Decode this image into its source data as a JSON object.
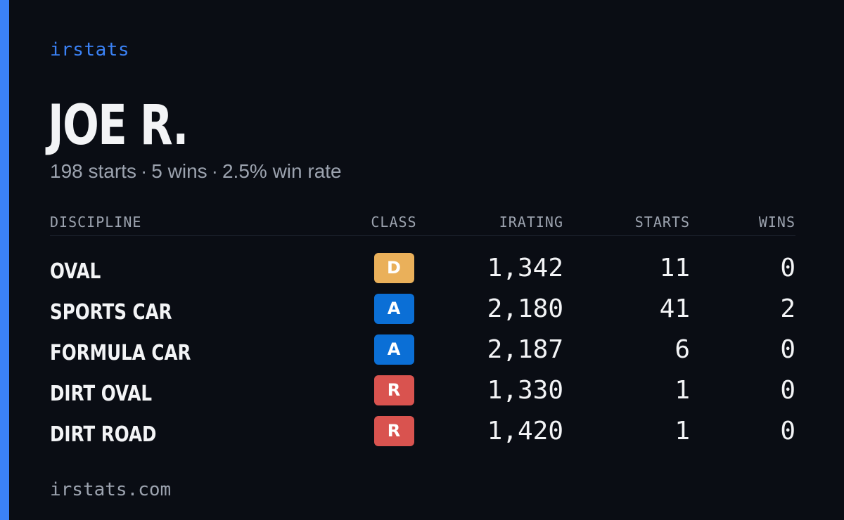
{
  "brand": "irstats",
  "driver": {
    "name": "JOE R.",
    "starts_text": "198 starts",
    "wins_text": "5 wins",
    "win_rate_text": "2.5% win rate",
    "separator": "·"
  },
  "table": {
    "headers": {
      "discipline": "DISCIPLINE",
      "class": "CLASS",
      "irating": "IRATING",
      "starts": "STARTS",
      "wins": "WINS"
    },
    "rows": [
      {
        "discipline": "OVAL",
        "class": "D",
        "class_color": "#eab05a",
        "irating": "1,342",
        "starts": "11",
        "wins": "0"
      },
      {
        "discipline": "SPORTS CAR",
        "class": "A",
        "class_color": "#0b6fd6",
        "irating": "2,180",
        "starts": "41",
        "wins": "2"
      },
      {
        "discipline": "FORMULA CAR",
        "class": "A",
        "class_color": "#0b6fd6",
        "irating": "2,187",
        "starts": "6",
        "wins": "0"
      },
      {
        "discipline": "DIRT OVAL",
        "class": "R",
        "class_color": "#d9534f",
        "irating": "1,330",
        "starts": "1",
        "wins": "0"
      },
      {
        "discipline": "DIRT ROAD",
        "class": "R",
        "class_color": "#d9534f",
        "irating": "1,420",
        "starts": "1",
        "wins": "0"
      }
    ]
  },
  "footer": "irstats.com",
  "colors": {
    "accent": "#3b82f6",
    "background": "#0a0d14",
    "muted_text": "#9ca3af"
  }
}
